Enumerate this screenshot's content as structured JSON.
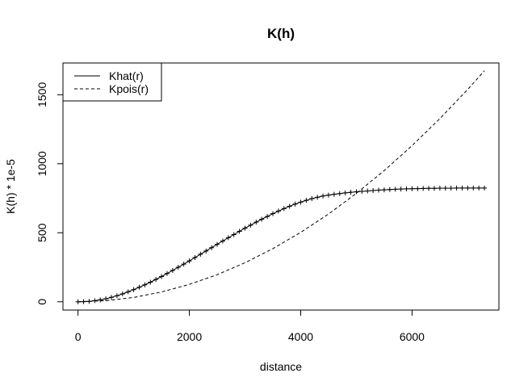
{
  "chart_data": {
    "type": "line",
    "title": "K(h)",
    "xlabel": "distance",
    "ylabel": "K(h) * 1e-5",
    "xlim": [
      -270,
      7560
    ],
    "ylim": [
      -60,
      1730
    ],
    "x_ticks": [
      0,
      2000,
      4000,
      6000
    ],
    "y_ticks": [
      0,
      500,
      1000,
      1500
    ],
    "grid": false,
    "legend_position": "top-left",
    "series": [
      {
        "name": "Khat(r)",
        "line_style": "solid",
        "marker": "plus",
        "x": [
          0,
          100,
          200,
          300,
          400,
          500,
          600,
          700,
          800,
          900,
          1000,
          1100,
          1200,
          1300,
          1400,
          1500,
          1600,
          1700,
          1800,
          1900,
          2000,
          2100,
          2200,
          2300,
          2400,
          2500,
          2600,
          2700,
          2800,
          2900,
          3000,
          3100,
          3200,
          3300,
          3400,
          3500,
          3600,
          3700,
          3800,
          3900,
          4000,
          4100,
          4200,
          4300,
          4400,
          4500,
          4600,
          4700,
          4800,
          4900,
          5000,
          5100,
          5200,
          5300,
          5400,
          5500,
          5600,
          5700,
          5800,
          5900,
          6000,
          6100,
          6200,
          6300,
          6400,
          6500,
          6600,
          6700,
          6800,
          6900,
          7000,
          7100,
          7200,
          7300
        ],
        "values": [
          0,
          1,
          3,
          8,
          14,
          22,
          32,
          44,
          57,
          72,
          88,
          105,
          123,
          142,
          162,
          183,
          205,
          227,
          250,
          273,
          296,
          320,
          344,
          368,
          392,
          416,
          440,
          464,
          487,
          510,
          533,
          555,
          577,
          598,
          618,
          638,
          657,
          675,
          692,
          708,
          722,
          735,
          747,
          757,
          766,
          773,
          779,
          784,
          789,
          793,
          797,
          800,
          803,
          806,
          809,
          811,
          813,
          815,
          817,
          818,
          819,
          820,
          821,
          822,
          822,
          823,
          823,
          823,
          824,
          824,
          824,
          824,
          824,
          824
        ]
      },
      {
        "name": "Kpois(r)",
        "line_style": "dashed",
        "marker": "none",
        "x": [
          0,
          500,
          1000,
          1500,
          2000,
          2500,
          3000,
          3500,
          4000,
          4500,
          5000,
          5500,
          6000,
          6500,
          7000,
          7300
        ],
        "values": [
          0,
          8,
          31,
          71,
          126,
          196,
          283,
          385,
          503,
          636,
          785,
          950,
          1131,
          1327,
          1539,
          1674
        ]
      }
    ]
  }
}
